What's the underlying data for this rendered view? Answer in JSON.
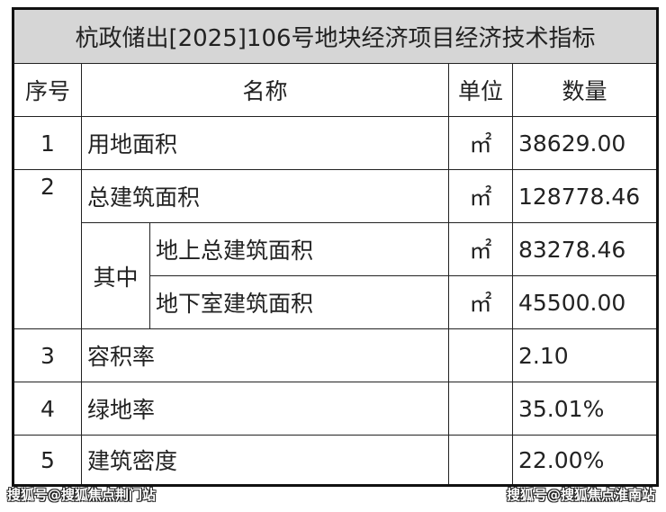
{
  "title": "杭政储出[2025]106号地块经济项目经济技术指标",
  "headers": {
    "no": "序号",
    "name": "名称",
    "unit": "单位",
    "qty": "数量"
  },
  "rows": [
    {
      "no": "1",
      "name": "用地面积",
      "unit": "㎡",
      "qty": "38629.00"
    },
    {
      "no": "2",
      "name": "总建筑面积",
      "unit": "㎡",
      "qty": "128778.46"
    },
    {
      "sub_group": "其中",
      "name": "地上总建筑面积",
      "unit": "㎡",
      "qty": "83278.46"
    },
    {
      "name": "地下室建筑面积",
      "unit": "㎡",
      "qty": "45500.00"
    },
    {
      "no": "3",
      "name": "容积率",
      "unit": "",
      "qty": "2.10"
    },
    {
      "no": "4",
      "name": "绿地率",
      "unit": "",
      "qty": "35.01%"
    },
    {
      "no": "5",
      "name": "建筑密度",
      "unit": "",
      "qty": "22.00%"
    }
  ],
  "watermarks": {
    "left": "搜狐号@搜狐焦点荆门站",
    "right": "搜狐号@搜狐焦点淮南站"
  }
}
